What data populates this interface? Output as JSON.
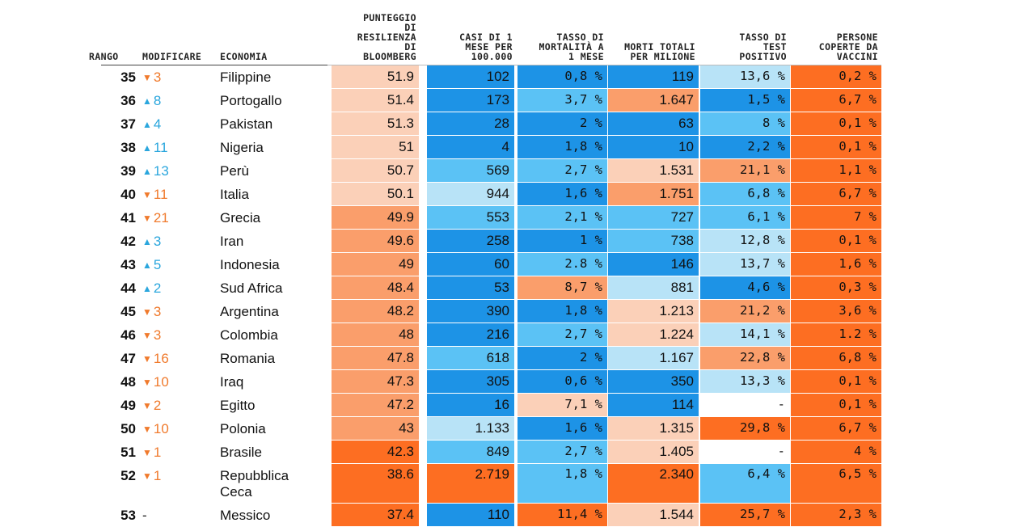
{
  "chart_data": {
    "type": "table",
    "columns": [
      {
        "key": "rank",
        "label": "RANGO"
      },
      {
        "key": "change",
        "label": "MODIFICARE"
      },
      {
        "key": "economy",
        "label": "ECONOMIA"
      },
      {
        "key": "score",
        "label": "PUNTEGGIO\nDI\nRESILIENZA\nDI\nBLOOMBERG"
      },
      {
        "key": "cases",
        "label": "CASI DI 1\nMESE PER\n100.000"
      },
      {
        "key": "mortality",
        "label": "TASSO DI\nMORTALITÀ A\n1 MESE"
      },
      {
        "key": "deaths",
        "label": "MORTI TOTALI\nPER MILIONE"
      },
      {
        "key": "positive",
        "label": "TASSO DI\nTEST\nPOSITIVO"
      },
      {
        "key": "vaccine",
        "label": "PERSONE\nCOPERTE DA\nVACCINI"
      }
    ],
    "rows": [
      {
        "rank": "35",
        "dir": "down",
        "change": "3",
        "economy": "Filippine",
        "score": "51.9",
        "cases": "102",
        "mortality": "0,8 %",
        "deaths": "119",
        "positive": "13,6 %",
        "vaccine": "0,2 %",
        "colors": [
          "#fbd0b8",
          "#1d93e6",
          "#1d93e6",
          "#1d93e6",
          "#b8e3f7",
          "#fd6e22"
        ]
      },
      {
        "rank": "36",
        "dir": "up",
        "change": "8",
        "economy": "Portogallo",
        "score": "51.4",
        "cases": "173",
        "mortality": "3,7 %",
        "deaths": "1.647",
        "positive": "1,5 %",
        "vaccine": "6,7 %",
        "colors": [
          "#fbd0b8",
          "#1d93e6",
          "#5bc2f5",
          "#fa9e6b",
          "#1d93e6",
          "#fd6e22"
        ]
      },
      {
        "rank": "37",
        "dir": "up",
        "change": "4",
        "economy": "Pakistan",
        "score": "51.3",
        "cases": "28",
        "mortality": "2 %",
        "deaths": "63",
        "positive": "8 %",
        "vaccine": "0,1 %",
        "colors": [
          "#fbd0b8",
          "#1d93e6",
          "#1d93e6",
          "#1d93e6",
          "#5bc2f5",
          "#fd6e22"
        ]
      },
      {
        "rank": "38",
        "dir": "up",
        "change": "11",
        "economy": "Nigeria",
        "score": "51",
        "cases": "4",
        "mortality": "1,8 %",
        "deaths": "10",
        "positive": "2,2 %",
        "vaccine": "0,1 %",
        "colors": [
          "#fbd0b8",
          "#1d93e6",
          "#1d93e6",
          "#1d93e6",
          "#1d93e6",
          "#fd6e22"
        ]
      },
      {
        "rank": "39",
        "dir": "up",
        "change": "13",
        "economy": "Perù",
        "score": "50.7",
        "cases": "569",
        "mortality": "2,7 %",
        "deaths": "1.531",
        "positive": "21,1 %",
        "vaccine": "1,1 %",
        "colors": [
          "#fbd0b8",
          "#5bc2f5",
          "#5bc2f5",
          "#fbd0b8",
          "#fa9e6b",
          "#fd6e22"
        ]
      },
      {
        "rank": "40",
        "dir": "down",
        "change": "11",
        "economy": "Italia",
        "score": "50.1",
        "cases": "944",
        "mortality": "1,6 %",
        "deaths": "1.751",
        "positive": "6,8 %",
        "vaccine": "6,7 %",
        "colors": [
          "#fbd0b8",
          "#b8e3f7",
          "#1d93e6",
          "#fa9e6b",
          "#5bc2f5",
          "#fd6e22"
        ]
      },
      {
        "rank": "41",
        "dir": "down",
        "change": "21",
        "economy": "Grecia",
        "score": "49.9",
        "cases": "553",
        "mortality": "2,1 %",
        "deaths": "727",
        "positive": "6,1 %",
        "vaccine": "7 %",
        "colors": [
          "#fa9e6b",
          "#5bc2f5",
          "#5bc2f5",
          "#5bc2f5",
          "#5bc2f5",
          "#fd6e22"
        ]
      },
      {
        "rank": "42",
        "dir": "up",
        "change": "3",
        "economy": "Iran",
        "score": "49.6",
        "cases": "258",
        "mortality": "1 %",
        "deaths": "738",
        "positive": "12,8 %",
        "vaccine": "0,1 %",
        "colors": [
          "#fa9e6b",
          "#1d93e6",
          "#1d93e6",
          "#5bc2f5",
          "#b8e3f7",
          "#fd6e22"
        ]
      },
      {
        "rank": "43",
        "dir": "up",
        "change": "5",
        "economy": "Indonesia",
        "score": "49",
        "cases": "60",
        "mortality": "2.8 %",
        "deaths": "146",
        "positive": "13,7 %",
        "vaccine": "1,6 %",
        "colors": [
          "#fa9e6b",
          "#1d93e6",
          "#5bc2f5",
          "#1d93e6",
          "#b8e3f7",
          "#fd6e22"
        ]
      },
      {
        "rank": "44",
        "dir": "up",
        "change": "2",
        "economy": "Sud Africa",
        "score": "48.4",
        "cases": "53",
        "mortality": "8,7 %",
        "deaths": "881",
        "positive": "4,6 %",
        "vaccine": "0,3 %",
        "colors": [
          "#fa9e6b",
          "#1d93e6",
          "#fa9e6b",
          "#b8e3f7",
          "#1d93e6",
          "#fd6e22"
        ]
      },
      {
        "rank": "45",
        "dir": "down",
        "change": "3",
        "economy": "Argentina",
        "score": "48.2",
        "cases": "390",
        "mortality": "1,8 %",
        "deaths": "1.213",
        "positive": "21,2 %",
        "vaccine": "3,6 %",
        "colors": [
          "#fa9e6b",
          "#1d93e6",
          "#1d93e6",
          "#fbd0b8",
          "#fa9e6b",
          "#fd6e22"
        ]
      },
      {
        "rank": "46",
        "dir": "down",
        "change": "3",
        "economy": "Colombia",
        "score": "48",
        "cases": "216",
        "mortality": "2,7 %",
        "deaths": "1.224",
        "positive": "14,1 %",
        "vaccine": "1.2 %",
        "colors": [
          "#fa9e6b",
          "#1d93e6",
          "#5bc2f5",
          "#fbd0b8",
          "#b8e3f7",
          "#fd6e22"
        ]
      },
      {
        "rank": "47",
        "dir": "down",
        "change": "16",
        "economy": "Romania",
        "score": "47.8",
        "cases": "618",
        "mortality": "2 %",
        "deaths": "1.167",
        "positive": "22,8 %",
        "vaccine": "6,8 %",
        "colors": [
          "#fa9e6b",
          "#5bc2f5",
          "#1d93e6",
          "#b8e3f7",
          "#fa9e6b",
          "#fd6e22"
        ]
      },
      {
        "rank": "48",
        "dir": "down",
        "change": "10",
        "economy": "Iraq",
        "score": "47.3",
        "cases": "305",
        "mortality": "0,6 %",
        "deaths": "350",
        "positive": "13,3 %",
        "vaccine": "0,1 %",
        "colors": [
          "#fa9e6b",
          "#1d93e6",
          "#1d93e6",
          "#1d93e6",
          "#b8e3f7",
          "#fd6e22"
        ]
      },
      {
        "rank": "49",
        "dir": "down",
        "change": "2",
        "economy": "Egitto",
        "score": "47.2",
        "cases": "16",
        "mortality": "7,1 %",
        "deaths": "114",
        "positive": "-",
        "vaccine": "0,1 %",
        "colors": [
          "#fa9e6b",
          "#1d93e6",
          "#fbd0b8",
          "#1d93e6",
          "#ffffff",
          "#fd6e22"
        ]
      },
      {
        "rank": "50",
        "dir": "down",
        "change": "10",
        "economy": "Polonia",
        "score": "43",
        "cases": "1.133",
        "mortality": "1,6 %",
        "deaths": "1.315",
        "positive": "29,8 %",
        "vaccine": "6,7 %",
        "colors": [
          "#fa9e6b",
          "#b8e3f7",
          "#1d93e6",
          "#fbd0b8",
          "#fd6e22",
          "#fd6e22"
        ]
      },
      {
        "rank": "51",
        "dir": "down",
        "change": "1",
        "economy": "Brasile",
        "score": "42.3",
        "cases": "849",
        "mortality": "2,7 %",
        "deaths": "1.405",
        "positive": "-",
        "vaccine": "4 %",
        "colors": [
          "#fd6e22",
          "#5bc2f5",
          "#5bc2f5",
          "#fbd0b8",
          "#ffffff",
          "#fd6e22"
        ]
      },
      {
        "rank": "52",
        "dir": "down",
        "change": "1",
        "economy": "Repubblica\nCeca",
        "score": "38.6",
        "cases": "2.719",
        "mortality": "1,8 %",
        "deaths": "2.340",
        "positive": "6,4 %",
        "vaccine": "6,5 %",
        "colors": [
          "#fd6e22",
          "#fd6e22",
          "#5bc2f5",
          "#fd6e22",
          "#5bc2f5",
          "#fd6e22"
        ]
      },
      {
        "rank": "53",
        "dir": "none",
        "change": "-",
        "economy": "Messico",
        "score": "37.4",
        "cases": "110",
        "mortality": "11,4 %",
        "deaths": "1.544",
        "positive": "25,7 %",
        "vaccine": "2,3 %",
        "colors": [
          "#fd6e22",
          "#1d93e6",
          "#fd6e22",
          "#fbd0b8",
          "#fd6e22",
          "#fd6e22"
        ]
      }
    ]
  }
}
